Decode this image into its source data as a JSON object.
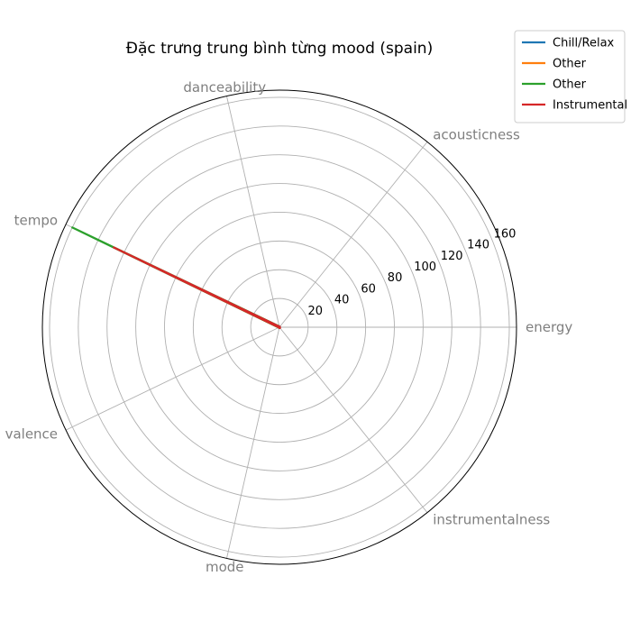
{
  "chart_data": {
    "type": "radar",
    "title": "Đặc trưng trung bình từng mood (spain)",
    "axes": [
      "energy",
      "acousticness",
      "danceability",
      "tempo",
      "valence",
      "mode",
      "instrumentalness"
    ],
    "r_ticks": [
      20,
      40,
      60,
      80,
      100,
      120,
      140,
      160
    ],
    "r_max": 165,
    "grid": true,
    "legend_position": "top-right",
    "series": [
      {
        "name": "Chill/Relax",
        "color": "#1f77b4",
        "values": [
          0.6,
          0.4,
          0.6,
          116,
          0.4,
          0.6,
          0.05
        ]
      },
      {
        "name": "Other",
        "color": "#ff7f0e",
        "values": [
          0.6,
          0.3,
          0.6,
          118,
          0.5,
          0.6,
          0.03
        ]
      },
      {
        "name": "Other",
        "color": "#2ca02c",
        "values": [
          0.7,
          0.2,
          0.6,
          160,
          0.5,
          0.6,
          0.02
        ]
      },
      {
        "name": "Instrumental",
        "color": "#d62728",
        "values": [
          0.5,
          0.5,
          0.5,
          128,
          0.4,
          0.6,
          0.7
        ]
      }
    ]
  }
}
